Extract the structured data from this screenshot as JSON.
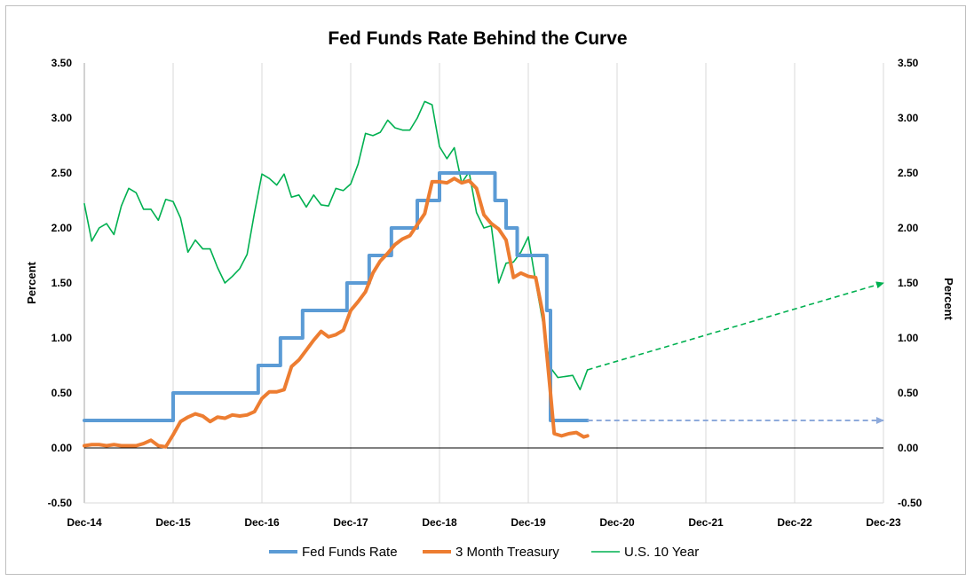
{
  "chart_data": {
    "type": "line",
    "title": "Fed Funds Rate Behind the Curve",
    "ylabel_left": "Percent",
    "ylabel_right": "Percent",
    "ylim": [
      -0.5,
      3.5
    ],
    "yticks": [
      -0.5,
      0.0,
      0.5,
      1.0,
      1.5,
      2.0,
      2.5,
      3.0,
      3.5
    ],
    "ytick_labels": [
      "-0.50",
      "0.00",
      "0.50",
      "1.00",
      "1.50",
      "2.00",
      "2.50",
      "3.00",
      "3.50"
    ],
    "xlim": [
      0,
      108
    ],
    "xticks": [
      0,
      12,
      24,
      36,
      48,
      60,
      72,
      84,
      96,
      108
    ],
    "xtick_labels": [
      "Dec-14",
      "Dec-15",
      "Dec-16",
      "Dec-17",
      "Dec-18",
      "Dec-19",
      "Dec-20",
      "Dec-21",
      "Dec-22",
      "Dec-23"
    ],
    "x_unit": "months since Dec-14",
    "grid": {
      "vertical": true,
      "horizontal": false,
      "zero_line": true
    },
    "legend_position": "bottom",
    "series": [
      {
        "name": "Fed Funds Rate",
        "color": "#5b9bd5",
        "step": true,
        "points": [
          [
            0,
            0.25
          ],
          [
            12,
            0.25
          ],
          [
            12,
            0.5
          ],
          [
            23.5,
            0.5
          ],
          [
            23.5,
            0.75
          ],
          [
            26.5,
            0.75
          ],
          [
            26.5,
            1.0
          ],
          [
            29.5,
            1.0
          ],
          [
            29.5,
            1.25
          ],
          [
            35.5,
            1.25
          ],
          [
            35.5,
            1.5
          ],
          [
            38.5,
            1.5
          ],
          [
            38.5,
            1.75
          ],
          [
            41.5,
            1.75
          ],
          [
            41.5,
            2.0
          ],
          [
            45,
            2.0
          ],
          [
            45,
            2.25
          ],
          [
            48,
            2.25
          ],
          [
            48,
            2.5
          ],
          [
            55.5,
            2.5
          ],
          [
            55.5,
            2.25
          ],
          [
            57,
            2.25
          ],
          [
            57,
            2.0
          ],
          [
            58.5,
            2.0
          ],
          [
            58.5,
            1.75
          ],
          [
            62.5,
            1.75
          ],
          [
            62.5,
            1.25
          ],
          [
            63,
            1.25
          ],
          [
            63,
            0.25
          ],
          [
            68,
            0.25
          ]
        ]
      },
      {
        "name": "3 Month Treasury",
        "color": "#ed7d31",
        "points": [
          [
            0,
            0.02
          ],
          [
            1,
            0.03
          ],
          [
            2,
            0.03
          ],
          [
            3,
            0.02
          ],
          [
            4,
            0.03
          ],
          [
            5,
            0.02
          ],
          [
            6,
            0.02
          ],
          [
            7,
            0.02
          ],
          [
            8,
            0.04
          ],
          [
            9,
            0.07
          ],
          [
            10,
            0.02
          ],
          [
            11,
            0.01
          ],
          [
            12,
            0.12
          ],
          [
            13,
            0.24
          ],
          [
            14,
            0.28
          ],
          [
            15,
            0.31
          ],
          [
            16,
            0.29
          ],
          [
            17,
            0.24
          ],
          [
            18,
            0.28
          ],
          [
            19,
            0.27
          ],
          [
            20,
            0.3
          ],
          [
            21,
            0.29
          ],
          [
            22,
            0.3
          ],
          [
            23,
            0.33
          ],
          [
            24,
            0.45
          ],
          [
            25,
            0.51
          ],
          [
            26,
            0.51
          ],
          [
            27,
            0.53
          ],
          [
            28,
            0.74
          ],
          [
            29,
            0.8
          ],
          [
            30,
            0.89
          ],
          [
            31,
            0.98
          ],
          [
            32,
            1.06
          ],
          [
            33,
            1.01
          ],
          [
            34,
            1.03
          ],
          [
            35,
            1.07
          ],
          [
            36,
            1.25
          ],
          [
            37,
            1.33
          ],
          [
            38,
            1.42
          ],
          [
            39,
            1.59
          ],
          [
            40,
            1.7
          ],
          [
            41,
            1.77
          ],
          [
            42,
            1.85
          ],
          [
            43,
            1.9
          ],
          [
            44,
            1.93
          ],
          [
            45,
            2.03
          ],
          [
            46,
            2.13
          ],
          [
            47,
            2.42
          ],
          [
            48,
            2.42
          ],
          [
            49,
            2.41
          ],
          [
            50,
            2.45
          ],
          [
            51,
            2.41
          ],
          [
            52,
            2.43
          ],
          [
            53,
            2.36
          ],
          [
            54,
            2.12
          ],
          [
            55,
            2.04
          ],
          [
            56,
            1.99
          ],
          [
            57,
            1.89
          ],
          [
            58,
            1.55
          ],
          [
            59,
            1.59
          ],
          [
            60,
            1.56
          ],
          [
            61,
            1.55
          ],
          [
            62,
            1.21
          ],
          [
            63,
            0.5
          ],
          [
            63.5,
            0.13
          ],
          [
            64.5,
            0.11
          ],
          [
            65.5,
            0.13
          ],
          [
            66.5,
            0.14
          ],
          [
            67.5,
            0.1
          ],
          [
            68,
            0.11
          ]
        ]
      },
      {
        "name": "U.S. 10 Year",
        "color": "#00b050",
        "points": [
          [
            0,
            2.22
          ],
          [
            1,
            1.88
          ],
          [
            2,
            2.0
          ],
          [
            3,
            2.04
          ],
          [
            4,
            1.94
          ],
          [
            5,
            2.2
          ],
          [
            6,
            2.36
          ],
          [
            7,
            2.32
          ],
          [
            8,
            2.17
          ],
          [
            9,
            2.17
          ],
          [
            10,
            2.07
          ],
          [
            11,
            2.26
          ],
          [
            12,
            2.24
          ],
          [
            13,
            2.09
          ],
          [
            14,
            1.78
          ],
          [
            15,
            1.89
          ],
          [
            16,
            1.81
          ],
          [
            17,
            1.81
          ],
          [
            18,
            1.64
          ],
          [
            19,
            1.5
          ],
          [
            20,
            1.56
          ],
          [
            21,
            1.63
          ],
          [
            22,
            1.76
          ],
          [
            23,
            2.14
          ],
          [
            24,
            2.49
          ],
          [
            25,
            2.45
          ],
          [
            26,
            2.39
          ],
          [
            27,
            2.49
          ],
          [
            28,
            2.28
          ],
          [
            29,
            2.3
          ],
          [
            30,
            2.19
          ],
          [
            31,
            2.3
          ],
          [
            32,
            2.21
          ],
          [
            33,
            2.2
          ],
          [
            34,
            2.36
          ],
          [
            35,
            2.34
          ],
          [
            36,
            2.4
          ],
          [
            37,
            2.58
          ],
          [
            38,
            2.86
          ],
          [
            39,
            2.84
          ],
          [
            40,
            2.87
          ],
          [
            41,
            2.98
          ],
          [
            42,
            2.91
          ],
          [
            43,
            2.89
          ],
          [
            44,
            2.89
          ],
          [
            45,
            3.0
          ],
          [
            46,
            3.15
          ],
          [
            47,
            3.12
          ],
          [
            48,
            2.74
          ],
          [
            49,
            2.63
          ],
          [
            50,
            2.73
          ],
          [
            51,
            2.41
          ],
          [
            52,
            2.51
          ],
          [
            53,
            2.14
          ],
          [
            54,
            2.0
          ],
          [
            55,
            2.02
          ],
          [
            56,
            1.5
          ],
          [
            57,
            1.68
          ],
          [
            58,
            1.69
          ],
          [
            59,
            1.78
          ],
          [
            60,
            1.92
          ],
          [
            61,
            1.51
          ],
          [
            62,
            1.13
          ],
          [
            63,
            0.73
          ],
          [
            64,
            0.64
          ],
          [
            65,
            0.65
          ],
          [
            66,
            0.66
          ],
          [
            67,
            0.53
          ],
          [
            68,
            0.71
          ]
        ]
      }
    ],
    "projections": [
      {
        "color": "#00b050",
        "from": [
          68,
          0.71
        ],
        "to": [
          108,
          1.5
        ]
      },
      {
        "color": "#8eaadb",
        "from": [
          68,
          0.25
        ],
        "to": [
          108,
          0.25
        ]
      }
    ]
  }
}
